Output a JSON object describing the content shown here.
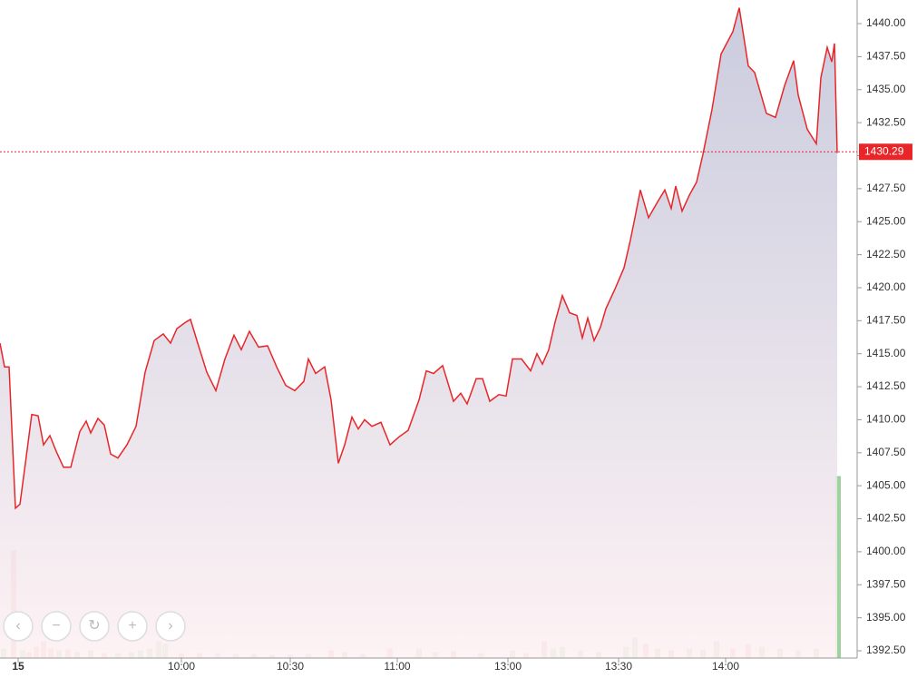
{
  "chart_data": {
    "type": "area",
    "xlim": [
      0,
      94.5
    ],
    "ylim": [
      1391.95,
      1441.79
    ],
    "xticks": [
      {
        "value": 2.0,
        "label": "15"
      },
      {
        "value": 20.0,
        "label": "10:00"
      },
      {
        "value": 32.0,
        "label": "10:30"
      },
      {
        "value": 43.8,
        "label": "11:00"
      },
      {
        "value": 56.0,
        "label": "13:00"
      },
      {
        "value": 68.2,
        "label": "13:30"
      },
      {
        "value": 80.0,
        "label": "14:00"
      }
    ],
    "yticks": [
      {
        "value": 1392.5,
        "label": "1392.50"
      },
      {
        "value": 1395,
        "label": "1395.00"
      },
      {
        "value": 1397.5,
        "label": "1397.50"
      },
      {
        "value": 1400,
        "label": "1400.00"
      },
      {
        "value": 1402.5,
        "label": "1402.50"
      },
      {
        "value": 1405,
        "label": "1405.00"
      },
      {
        "value": 1407.5,
        "label": "1407.50"
      },
      {
        "value": 1410,
        "label": "1410.00"
      },
      {
        "value": 1412.5,
        "label": "1412.50"
      },
      {
        "value": 1415,
        "label": "1415.00"
      },
      {
        "value": 1417.5,
        "label": "1417.50"
      },
      {
        "value": 1420,
        "label": "1420.00"
      },
      {
        "value": 1422.5,
        "label": "1422.50"
      },
      {
        "value": 1425,
        "label": "1425.00"
      },
      {
        "value": 1427.5,
        "label": "1427.50"
      },
      {
        "value": 1430,
        "label": "1430.00"
      },
      {
        "value": 1432.5,
        "label": "1432.50"
      },
      {
        "value": 1435,
        "label": "1435.00"
      },
      {
        "value": 1437.5,
        "label": "1437.50"
      },
      {
        "value": 1440,
        "label": "1440.00"
      }
    ],
    "last_price": 1430.29,
    "series": [
      {
        "color": "#e8262a",
        "x": [
          0,
          0.5,
          1.0,
          1.7,
          2.2,
          2.8,
          3.5,
          4.2,
          4.8,
          5.5,
          6.2,
          7.0,
          7.8,
          8.8,
          9.5,
          10.0,
          10.8,
          11.5,
          12.2,
          13.0,
          14.0,
          15.0,
          16.0,
          17.0,
          18.0,
          18.8,
          19.5,
          20.5,
          21.0,
          21.8,
          22.8,
          23.8,
          24.8,
          25.8,
          26.6,
          27.5,
          28.5,
          29.5,
          30.5,
          31.5,
          32.5,
          33.5,
          34.0,
          34.8,
          35.8,
          36.5,
          37.3,
          38.0,
          38.8,
          39.5,
          40.2,
          41.0,
          42.0,
          43.0,
          44.0,
          45.0,
          46.2,
          47.0,
          47.8,
          48.8,
          50.0,
          50.8,
          51.5,
          52.5,
          53.2,
          54.0,
          55.0,
          55.8,
          56.5,
          57.5,
          58.5,
          59.2,
          59.8,
          60.5,
          61.2,
          62.0,
          62.8,
          63.6,
          64.2,
          64.8,
          65.5,
          66.2,
          66.8,
          67.8,
          68.8,
          69.5,
          70.0,
          70.6,
          71.5,
          72.5,
          73.3,
          74.0,
          74.5,
          75.2,
          76.0,
          76.8,
          77.5,
          78.5,
          79.5,
          80.8,
          81.5,
          82.5,
          83.2,
          84.5,
          85.5,
          86.5,
          87.5,
          88.0,
          89.0,
          90.0,
          90.5,
          91.2,
          91.7,
          92.0,
          92.3
        ],
        "values": [
          1415.8,
          1414.0,
          1414.0,
          1403.3,
          1403.6,
          1406.7,
          1410.4,
          1410.3,
          1408.1,
          1408.8,
          1407.6,
          1406.4,
          1406.4,
          1409.1,
          1409.9,
          1409.0,
          1410.1,
          1409.6,
          1407.4,
          1407.1,
          1408.1,
          1409.5,
          1413.6,
          1416.0,
          1416.5,
          1415.8,
          1416.9,
          1417.4,
          1417.6,
          1415.8,
          1413.6,
          1412.2,
          1414.6,
          1416.4,
          1415.3,
          1416.7,
          1415.5,
          1415.6,
          1414.0,
          1412.6,
          1412.2,
          1412.9,
          1414.6,
          1413.5,
          1414.0,
          1411.5,
          1406.7,
          1408.1,
          1410.2,
          1409.3,
          1410.0,
          1409.5,
          1409.8,
          1408.1,
          1408.7,
          1409.2,
          1411.5,
          1413.7,
          1413.5,
          1414.1,
          1411.4,
          1412.0,
          1411.2,
          1413.1,
          1413.1,
          1411.4,
          1411.9,
          1411.8,
          1414.6,
          1414.6,
          1413.7,
          1415.0,
          1414.2,
          1415.3,
          1417.4,
          1419.4,
          1418.1,
          1417.9,
          1416.2,
          1417.7,
          1416.0,
          1417.0,
          1418.4,
          1419.9,
          1421.5,
          1423.6,
          1425.3,
          1427.4,
          1425.3,
          1426.5,
          1427.4,
          1426.0,
          1427.7,
          1425.8,
          1427.0,
          1428.0,
          1430.1,
          1433.5,
          1437.7,
          1439.4,
          1441.2,
          1436.8,
          1436.3,
          1433.2,
          1432.9,
          1435.3,
          1437.2,
          1434.6,
          1432.0,
          1430.9,
          1435.9,
          1438.2,
          1437.1,
          1438.5,
          1430.2
        ]
      }
    ],
    "volume": {
      "vlim": [
        0,
        250
      ],
      "x": [
        0.4,
        1.5,
        2.5,
        3.2,
        4.0,
        4.8,
        5.6,
        6.5,
        7.5,
        8.5,
        10.0,
        11.5,
        13.0,
        14.5,
        15.5,
        16.5,
        17.5,
        18.2,
        20.0,
        22.0,
        24.0,
        26.0,
        28.0,
        30.0,
        32.0,
        34.0,
        36.5,
        38.0,
        40.0,
        43.0,
        46.2,
        48.0,
        50.0,
        53.0,
        56.5,
        58.0,
        60.0,
        61.0,
        62.0,
        64.0,
        66.0,
        69.0,
        70.0,
        71.2,
        72.5,
        74.0,
        76.0,
        77.5,
        79.0,
        80.8,
        82.5,
        84.0,
        86.0,
        88.0,
        90.0,
        92.4
      ],
      "values": [
        10,
        118,
        8,
        6,
        12,
        18,
        10,
        8,
        9,
        6,
        8,
        5,
        5,
        6,
        8,
        10,
        18,
        15,
        5,
        5,
        5,
        4,
        4,
        3,
        3,
        4,
        8,
        6,
        4,
        10,
        10,
        6,
        7,
        5,
        8,
        5,
        18,
        10,
        12,
        8,
        6,
        12,
        22,
        15,
        10,
        8,
        10,
        9,
        18,
        10,
        15,
        12,
        10,
        8,
        10,
        200
      ],
      "colors": [
        "#9fd49f",
        "#f4a0a0",
        "#9fd49f",
        "#f4a0a0",
        "#f4a0a0",
        "#f4a0a0",
        "#f4a0a0",
        "#9fd49f",
        "#f4a0a0",
        "#9fd49f",
        "#9fd49f",
        "#f4a0a0",
        "#9fd49f",
        "#9fd49f",
        "#9fd49f",
        "#9fd49f",
        "#9fd49f",
        "#9fd49f",
        "#f4a0a0",
        "#f4a0a0",
        "#f4a0a0",
        "#f4a0a0",
        "#f4a0a0",
        "#9fd49f",
        "#f4a0a0",
        "#f4a0a0",
        "#f4a0a0",
        "#9fd49f",
        "#9fd49f",
        "#f4a0a0",
        "#9fd49f",
        "#9fd49f",
        "#f4a0a0",
        "#9fd49f",
        "#9fd49f",
        "#f4a0a0",
        "#f4a0a0",
        "#9fd49f",
        "#9fd49f",
        "#9fd49f",
        "#9fd49f",
        "#9fd49f",
        "#9fd49f",
        "#f4a0a0",
        "#9fd49f",
        "#f4a0a0",
        "#9fd49f",
        "#9fd49f",
        "#9fd49f",
        "#f4a0a0",
        "#f4a0a0",
        "#9fd49f",
        "#9fd49f",
        "#9fd49f",
        "#9fd49f",
        "#9fd49f"
      ]
    }
  }
}
